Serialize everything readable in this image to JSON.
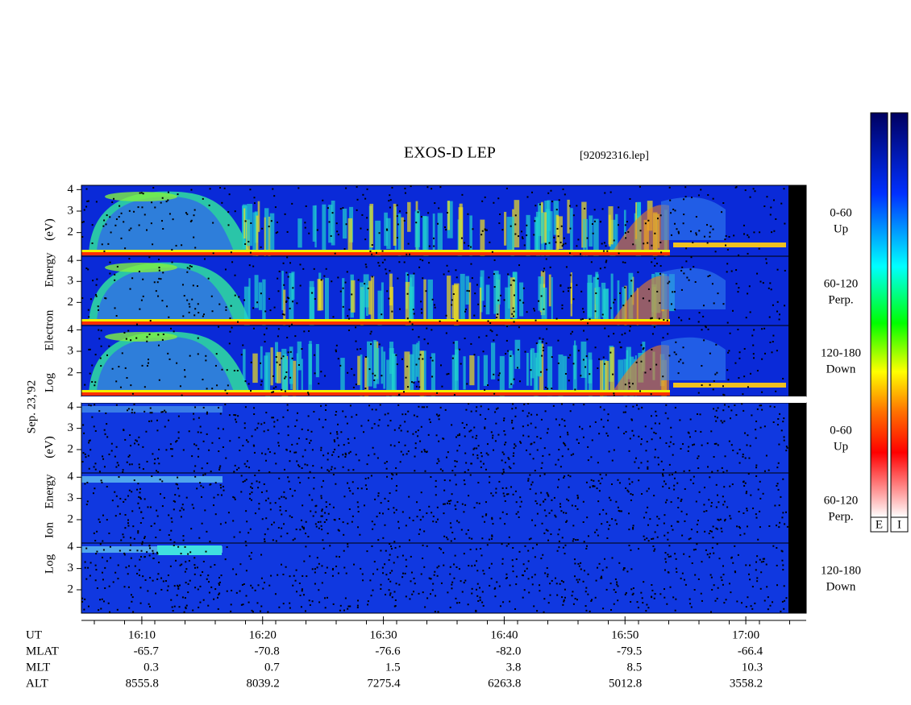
{
  "title": "EXOS-D LEP",
  "file": "[92092316.lep]",
  "date": "Sep. 23,'92",
  "electron": {
    "axis_label": [
      "Log",
      "Electron",
      "Energy",
      "(eV)"
    ],
    "panels": [
      {
        "angle": "0-60",
        "direction": "Up"
      },
      {
        "angle": "60-120",
        "direction": "Perp."
      },
      {
        "angle": "120-180",
        "direction": "Down"
      }
    ]
  },
  "ion": {
    "axis_label": [
      "Log",
      "Ion",
      "Energy",
      "(eV)"
    ],
    "panels": [
      {
        "angle": "0-60",
        "direction": "Up"
      },
      {
        "angle": "60-120",
        "direction": "Perp."
      },
      {
        "angle": "120-180",
        "direction": "Down"
      }
    ]
  },
  "ylim": [
    0.9,
    4.2
  ],
  "yticks": [
    2,
    3,
    4
  ],
  "time": {
    "label": "UT",
    "xlim": [
      965,
      1025
    ],
    "xticks": [
      {
        "value": 970,
        "label": "16:10"
      },
      {
        "value": 980,
        "label": "16:20"
      },
      {
        "value": 990,
        "label": "16:30"
      },
      {
        "value": 1000,
        "label": "16:40"
      },
      {
        "value": 1010,
        "label": "16:50"
      },
      {
        "value": 1020,
        "label": "17:00"
      }
    ]
  },
  "ephemeris": [
    {
      "label": "MLAT",
      "values": [
        -65.7,
        -70.8,
        -76.6,
        {
          "value": -82,
          "label": "-82.0"
        },
        -79.5,
        -66.4
      ]
    },
    {
      "label": "MLT",
      "values": [
        0.3,
        0.7,
        1.5,
        3.8,
        8.5,
        10.3
      ]
    },
    {
      "label": "ALT",
      "values": [
        8555.8,
        8039.2,
        7275.4,
        6263.8,
        5012.8,
        3558.2
      ]
    }
  ],
  "colorbars": [
    "E",
    "I"
  ]
}
